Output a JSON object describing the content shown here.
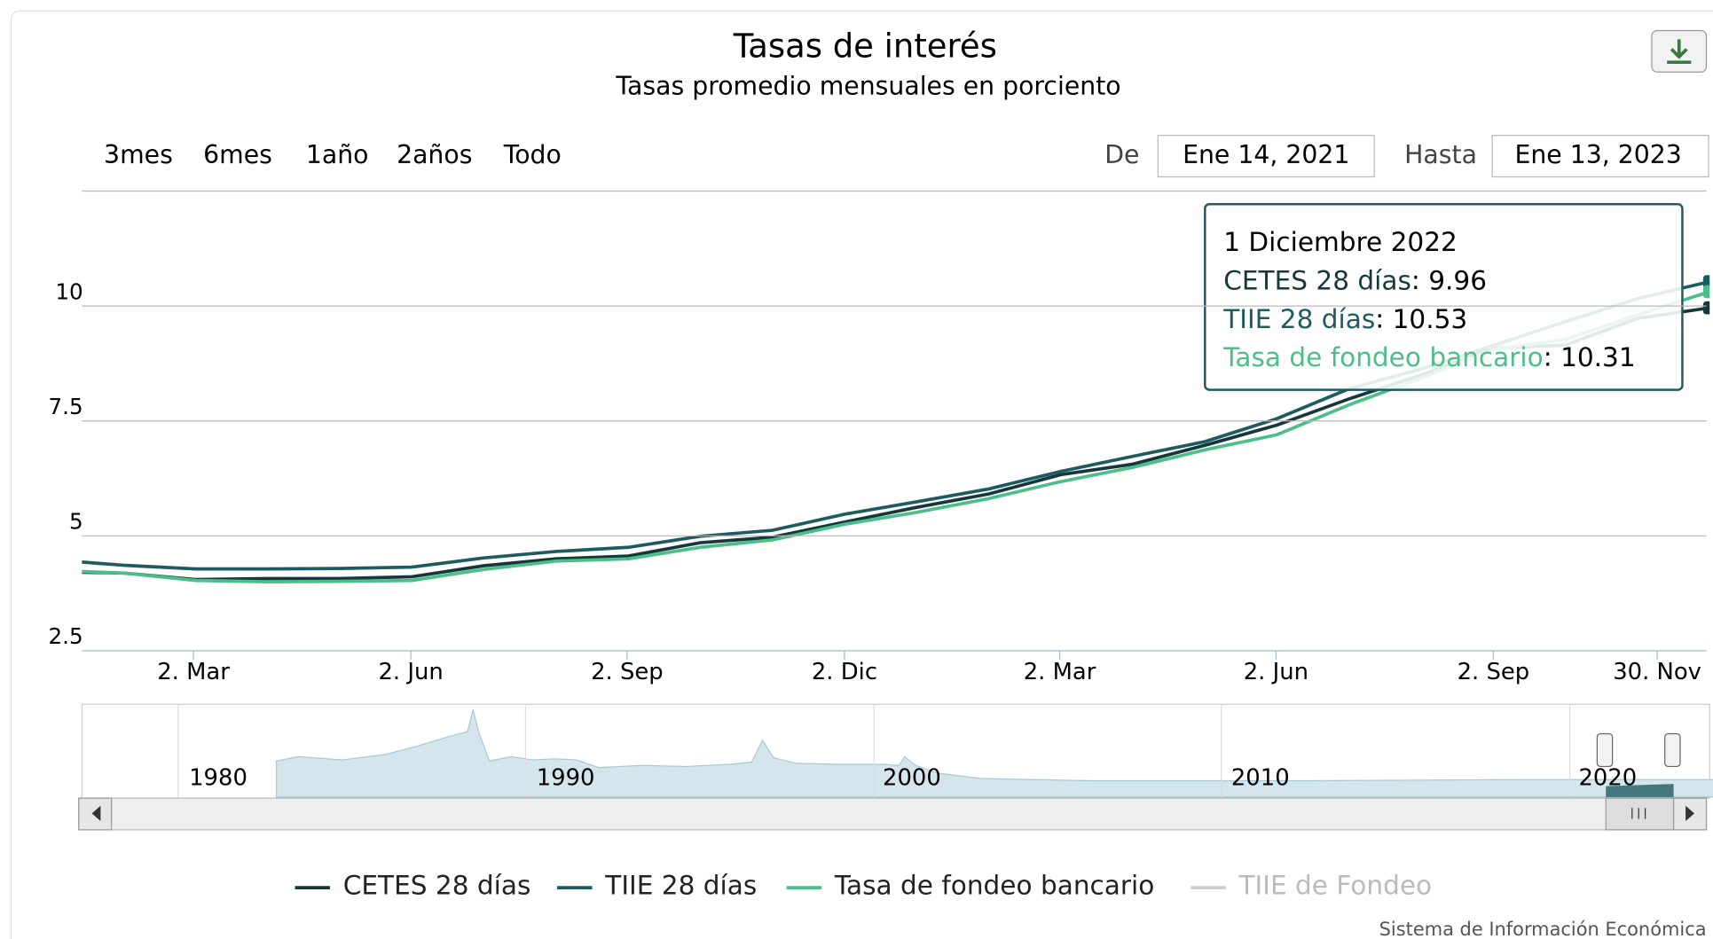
{
  "chart_data": {
    "type": "line",
    "title": "Tasas de interés",
    "subtitle": "Tasas promedio mensuales en porciento",
    "range_buttons": [
      "3mes",
      "6mes",
      "1año",
      "2años",
      "Todo"
    ],
    "date_from_label": "De",
    "date_from": "Ene 14, 2021",
    "date_to_label": "Hasta",
    "date_to": "Ene 13, 2023",
    "categories": [
      null,
      null,
      null,
      null,
      null,
      null,
      null,
      null,
      null,
      null,
      null,
      null,
      null,
      null,
      null,
      null,
      null,
      null,
      null,
      null,
      null,
      null,
      null,
      "1 Diciembre 2022"
    ],
    "xtick_labels": [
      "2. Mar",
      "2. Jun",
      "2. Sep",
      "2. Dic",
      "2. Mar",
      "2. Jun",
      "2. Sep",
      "30. Nov"
    ],
    "series": [
      {
        "name": "CETES 28 días",
        "color": "#16383c",
        "values": [
          4.22,
          4.19,
          4.05,
          4.07,
          4.07,
          4.11,
          4.35,
          4.5,
          4.56,
          4.85,
          4.97,
          5.3,
          5.62,
          5.91,
          6.33,
          6.56,
          6.97,
          7.41,
          7.98,
          8.5,
          9.08,
          9.15,
          9.73,
          9.96
        ]
      },
      {
        "name": "TIIE 28 días",
        "color": "#1e5b60",
        "values": [
          4.48,
          4.36,
          4.28,
          4.28,
          4.29,
          4.32,
          4.52,
          4.66,
          4.75,
          4.99,
          5.12,
          5.47,
          5.74,
          6.02,
          6.4,
          6.73,
          7.05,
          7.55,
          8.2,
          8.63,
          9.14,
          9.66,
          10.16,
          10.53
        ]
      },
      {
        "name": "Tasa de fondeo bancario",
        "color": "#4cbf89",
        "values": [
          4.25,
          4.19,
          4.03,
          4.0,
          4.01,
          4.03,
          4.27,
          4.45,
          4.5,
          4.75,
          4.91,
          5.25,
          5.51,
          5.81,
          6.18,
          6.49,
          6.87,
          7.2,
          7.85,
          8.43,
          9.05,
          9.27,
          9.81,
          10.31
        ]
      },
      {
        "name": "TIIE de Fondeo",
        "color": "#999999",
        "visible": false
      }
    ],
    "ylim": [
      2.5,
      12.5
    ],
    "yticks": [
      2.5,
      5,
      7.5,
      10
    ],
    "grid": true,
    "navigator_labels": [
      "1980",
      "1990",
      "2000",
      "2010",
      "2020"
    ],
    "credits": "Sistema de Información Económica"
  }
}
